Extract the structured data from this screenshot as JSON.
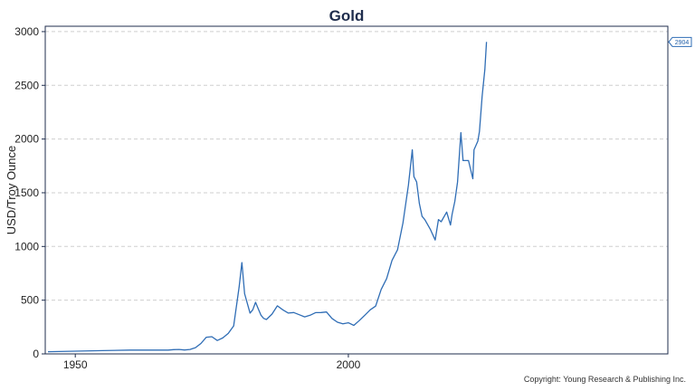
{
  "chart_data": {
    "type": "line",
    "title": "Gold",
    "xlabel": "",
    "ylabel": "USD/Troy Ounce",
    "xlim": [
      1944.5,
      2058.5
    ],
    "ylim": [
      0,
      3050
    ],
    "x_ticks": [
      1950,
      2000
    ],
    "x_tick_labels": [
      "1950",
      "2000"
    ],
    "y_ticks": [
      0,
      500,
      1000,
      1500,
      2000,
      2500,
      3000
    ],
    "y_tick_labels": [
      "0",
      "500",
      "1000",
      "1500",
      "2000",
      "2500",
      "3000"
    ],
    "grid": "horizontal-dashed",
    "legend": "none",
    "series": [
      {
        "color": "#2f6db5",
        "last_value_label": "2904",
        "x": [
          1945,
          1950,
          1955,
          1960,
          1962,
          1965,
          1966,
          1967,
          1968,
          1969,
          1970,
          1971,
          1972,
          1973,
          1974,
          1975,
          1976,
          1977,
          1978,
          1979,
          1980,
          1980.5,
          1981,
          1981.5,
          1982,
          1982.5,
          1983,
          1983.5,
          1984,
          1984.5,
          1985,
          1986,
          1987,
          1988,
          1989,
          1990,
          1991,
          1992,
          1993,
          1994,
          1995,
          1996,
          1997,
          1998,
          1999,
          2000,
          2001,
          2002,
          2003,
          2004,
          2005,
          2006,
          2007,
          2008,
          2009,
          2010,
          2011,
          2011.7,
          2012,
          2012.5,
          2013,
          2013.5,
          2014,
          2015,
          2015.9,
          2016.5,
          2017,
          2018,
          2018.7,
          2019,
          2019.5,
          2020,
          2020.6,
          2021,
          2022,
          2022.8,
          2023,
          2023.7,
          2024,
          2024.5,
          2025,
          2025.3
        ],
        "y": [
          20,
          25,
          30,
          35,
          35,
          35,
          35,
          35,
          40,
          41,
          36,
          41,
          58,
          97,
          155,
          160,
          125,
          148,
          190,
          260,
          620,
          850,
          560,
          470,
          380,
          410,
          480,
          420,
          360,
          330,
          320,
          370,
          447,
          410,
          380,
          385,
          365,
          345,
          360,
          384,
          385,
          390,
          330,
          295,
          280,
          290,
          265,
          310,
          360,
          410,
          445,
          600,
          700,
          870,
          970,
          1220,
          1570,
          1900,
          1650,
          1600,
          1400,
          1280,
          1250,
          1160,
          1060,
          1250,
          1230,
          1320,
          1200,
          1300,
          1420,
          1600,
          2060,
          1800,
          1800,
          1630,
          1900,
          1980,
          2070,
          2400,
          2650,
          2904
        ]
      }
    ],
    "annotations": [
      "Copyright: Young Research & Publishing Inc."
    ]
  }
}
